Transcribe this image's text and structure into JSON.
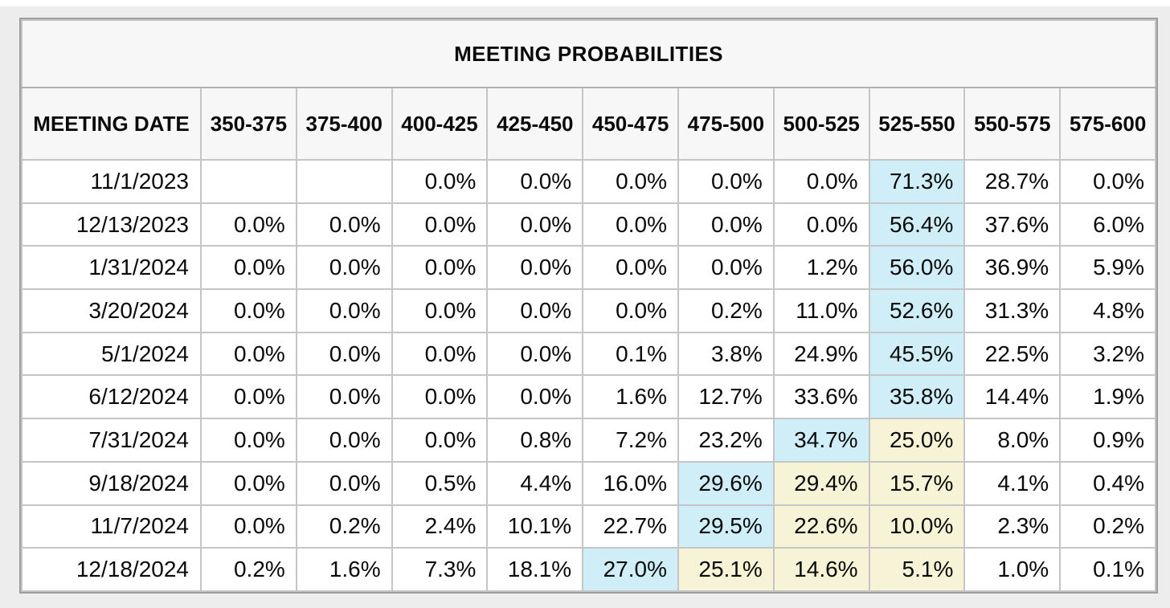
{
  "title": "MEETING PROBABILITIES",
  "colors": {
    "highlight_blue": "#cfeef7",
    "highlight_yellow": "#f6f3d7",
    "header_bg": "#f7f7f7"
  },
  "table": {
    "date_header": "MEETING DATE",
    "range_headers": [
      "350-375",
      "375-400",
      "400-425",
      "425-450",
      "450-475",
      "475-500",
      "500-525",
      "525-550",
      "550-575",
      "575-600"
    ],
    "rows": [
      {
        "date": "11/1/2023",
        "values": [
          "",
          "",
          "0.0%",
          "0.0%",
          "0.0%",
          "0.0%",
          "0.0%",
          "71.3%",
          "28.7%",
          "0.0%"
        ],
        "highlights": [
          "",
          "",
          "",
          "",
          "",
          "",
          "",
          "blue",
          "",
          ""
        ]
      },
      {
        "date": "12/13/2023",
        "values": [
          "0.0%",
          "0.0%",
          "0.0%",
          "0.0%",
          "0.0%",
          "0.0%",
          "0.0%",
          "56.4%",
          "37.6%",
          "6.0%"
        ],
        "highlights": [
          "",
          "",
          "",
          "",
          "",
          "",
          "",
          "blue",
          "",
          ""
        ]
      },
      {
        "date": "1/31/2024",
        "values": [
          "0.0%",
          "0.0%",
          "0.0%",
          "0.0%",
          "0.0%",
          "0.0%",
          "1.2%",
          "56.0%",
          "36.9%",
          "5.9%"
        ],
        "highlights": [
          "",
          "",
          "",
          "",
          "",
          "",
          "",
          "blue",
          "",
          ""
        ]
      },
      {
        "date": "3/20/2024",
        "values": [
          "0.0%",
          "0.0%",
          "0.0%",
          "0.0%",
          "0.0%",
          "0.2%",
          "11.0%",
          "52.6%",
          "31.3%",
          "4.8%"
        ],
        "highlights": [
          "",
          "",
          "",
          "",
          "",
          "",
          "",
          "blue",
          "",
          ""
        ]
      },
      {
        "date": "5/1/2024",
        "values": [
          "0.0%",
          "0.0%",
          "0.0%",
          "0.0%",
          "0.1%",
          "3.8%",
          "24.9%",
          "45.5%",
          "22.5%",
          "3.2%"
        ],
        "highlights": [
          "",
          "",
          "",
          "",
          "",
          "",
          "",
          "blue",
          "",
          ""
        ]
      },
      {
        "date": "6/12/2024",
        "values": [
          "0.0%",
          "0.0%",
          "0.0%",
          "0.0%",
          "1.6%",
          "12.7%",
          "33.6%",
          "35.8%",
          "14.4%",
          "1.9%"
        ],
        "highlights": [
          "",
          "",
          "",
          "",
          "",
          "",
          "",
          "blue",
          "",
          ""
        ]
      },
      {
        "date": "7/31/2024",
        "values": [
          "0.0%",
          "0.0%",
          "0.0%",
          "0.8%",
          "7.2%",
          "23.2%",
          "34.7%",
          "25.0%",
          "8.0%",
          "0.9%"
        ],
        "highlights": [
          "",
          "",
          "",
          "",
          "",
          "",
          "blue",
          "yellow",
          "",
          ""
        ]
      },
      {
        "date": "9/18/2024",
        "values": [
          "0.0%",
          "0.0%",
          "0.5%",
          "4.4%",
          "16.0%",
          "29.6%",
          "29.4%",
          "15.7%",
          "4.1%",
          "0.4%"
        ],
        "highlights": [
          "",
          "",
          "",
          "",
          "",
          "blue",
          "yellow",
          "yellow",
          "",
          ""
        ]
      },
      {
        "date": "11/7/2024",
        "values": [
          "0.0%",
          "0.2%",
          "2.4%",
          "10.1%",
          "22.7%",
          "29.5%",
          "22.6%",
          "10.0%",
          "2.3%",
          "0.2%"
        ],
        "highlights": [
          "",
          "",
          "",
          "",
          "",
          "blue",
          "yellow",
          "yellow",
          "",
          ""
        ]
      },
      {
        "date": "12/18/2024",
        "values": [
          "0.2%",
          "1.6%",
          "7.3%",
          "18.1%",
          "27.0%",
          "25.1%",
          "14.6%",
          "5.1%",
          "1.0%",
          "0.1%"
        ],
        "highlights": [
          "",
          "",
          "",
          "",
          "blue",
          "yellow",
          "yellow",
          "yellow",
          "",
          ""
        ]
      }
    ]
  },
  "chart_data": {
    "type": "table",
    "title": "MEETING PROBABILITIES",
    "row_label": "MEETING DATE",
    "columns": [
      "350-375",
      "375-400",
      "400-425",
      "425-450",
      "450-475",
      "475-500",
      "500-525",
      "525-550",
      "550-575",
      "575-600"
    ],
    "rows": [
      "11/1/2023",
      "12/13/2023",
      "1/31/2024",
      "3/20/2024",
      "5/1/2024",
      "6/12/2024",
      "7/31/2024",
      "9/18/2024",
      "11/7/2024",
      "12/18/2024"
    ],
    "values_pct": [
      [
        null,
        null,
        0.0,
        0.0,
        0.0,
        0.0,
        0.0,
        71.3,
        28.7,
        0.0
      ],
      [
        0.0,
        0.0,
        0.0,
        0.0,
        0.0,
        0.0,
        0.0,
        56.4,
        37.6,
        6.0
      ],
      [
        0.0,
        0.0,
        0.0,
        0.0,
        0.0,
        0.0,
        1.2,
        56.0,
        36.9,
        5.9
      ],
      [
        0.0,
        0.0,
        0.0,
        0.0,
        0.0,
        0.2,
        11.0,
        52.6,
        31.3,
        4.8
      ],
      [
        0.0,
        0.0,
        0.0,
        0.0,
        0.1,
        3.8,
        24.9,
        45.5,
        22.5,
        3.2
      ],
      [
        0.0,
        0.0,
        0.0,
        0.0,
        1.6,
        12.7,
        33.6,
        35.8,
        14.4,
        1.9
      ],
      [
        0.0,
        0.0,
        0.0,
        0.8,
        7.2,
        23.2,
        34.7,
        25.0,
        8.0,
        0.9
      ],
      [
        0.0,
        0.0,
        0.5,
        4.4,
        16.0,
        29.6,
        29.4,
        15.7,
        4.1,
        0.4
      ],
      [
        0.0,
        0.2,
        2.4,
        10.1,
        22.7,
        29.5,
        22.6,
        10.0,
        2.3,
        0.2
      ],
      [
        0.2,
        1.6,
        7.3,
        18.1,
        27.0,
        25.1,
        14.6,
        5.1,
        1.0,
        0.1
      ]
    ]
  }
}
